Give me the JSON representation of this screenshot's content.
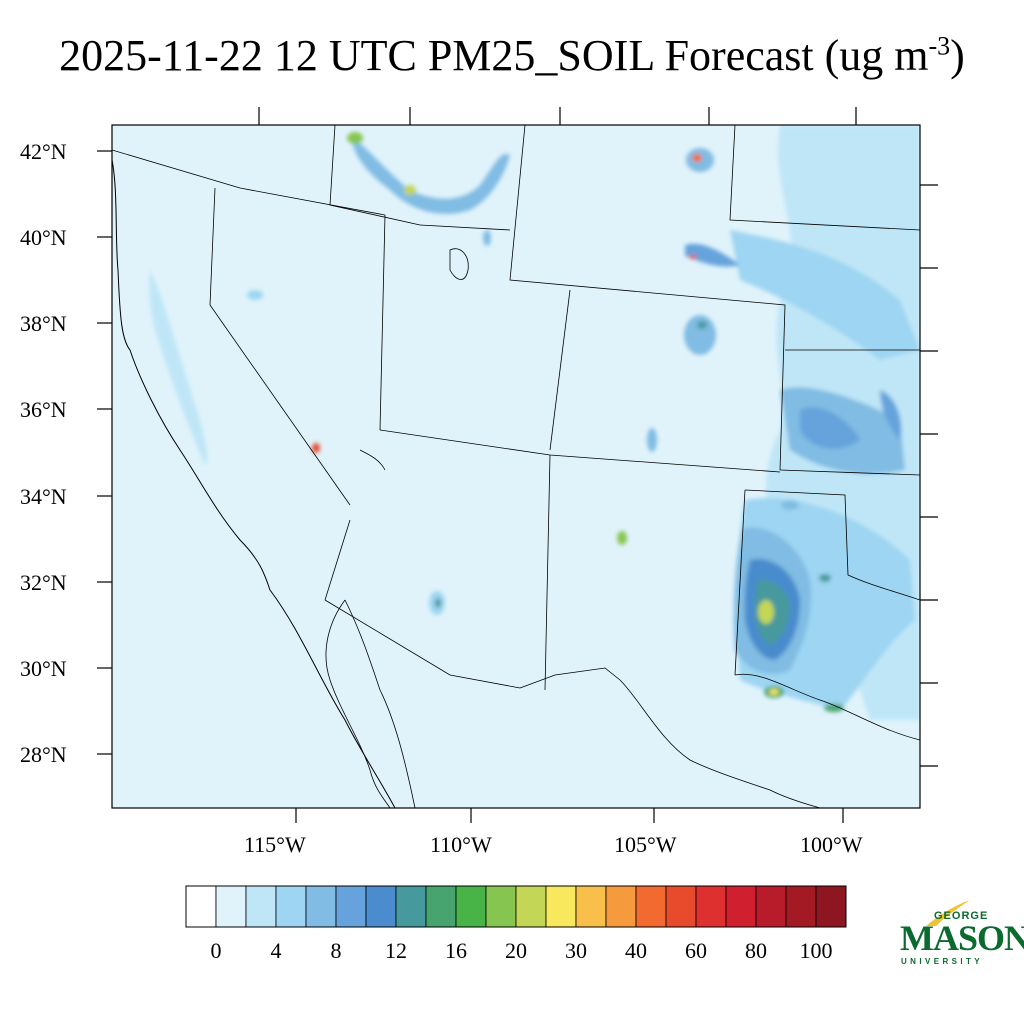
{
  "title": {
    "main": "2025-11-22 12 UTC PM25_SOIL Forecast (ug m",
    "sup": "-3",
    "tail": ")"
  },
  "map": {
    "region": "Southwestern United States and northern Mexico",
    "lat_labels": [
      "42°N",
      "40°N",
      "38°N",
      "36°N",
      "34°N",
      "32°N",
      "30°N",
      "28°N"
    ],
    "lon_labels": [
      "115°W",
      "110°W",
      "105°W",
      "100°W"
    ],
    "background_color": "#e0f3fb",
    "hotspots": [
      {
        "name": "west-texas-permian-plume",
        "max_bin": "30"
      },
      {
        "name": "big-bend-plume",
        "max_bin": "30"
      },
      {
        "name": "northern-colorado-plume",
        "max_bin": "60"
      },
      {
        "name": "southern-nevada-plume",
        "max_bin": "60"
      },
      {
        "name": "southern-idaho-plume",
        "max_bin": "20"
      }
    ]
  },
  "colorbar": {
    "labels": [
      "0",
      "4",
      "8",
      "12",
      "16",
      "20",
      "30",
      "40",
      "60",
      "80",
      "100"
    ],
    "colors": [
      "#ffffff",
      "#e0f3fb",
      "#bfe6f7",
      "#9dd5f2",
      "#80bce3",
      "#66a3dc",
      "#4a8ccd",
      "#46999d",
      "#47a46e",
      "#48b448",
      "#86c650",
      "#c3d655",
      "#f7e85d",
      "#f9bf4b",
      "#f69a3e",
      "#f26a2f",
      "#e84a2c",
      "#de302e",
      "#d01f2f",
      "#b81b2a",
      "#a31a25",
      "#8e1620"
    ]
  },
  "logo": {
    "top": "GEORGE",
    "name": "MASON",
    "bottom": "UNIVERSITY",
    "color": "#0b6b2e",
    "accent": "#f2c230"
  }
}
